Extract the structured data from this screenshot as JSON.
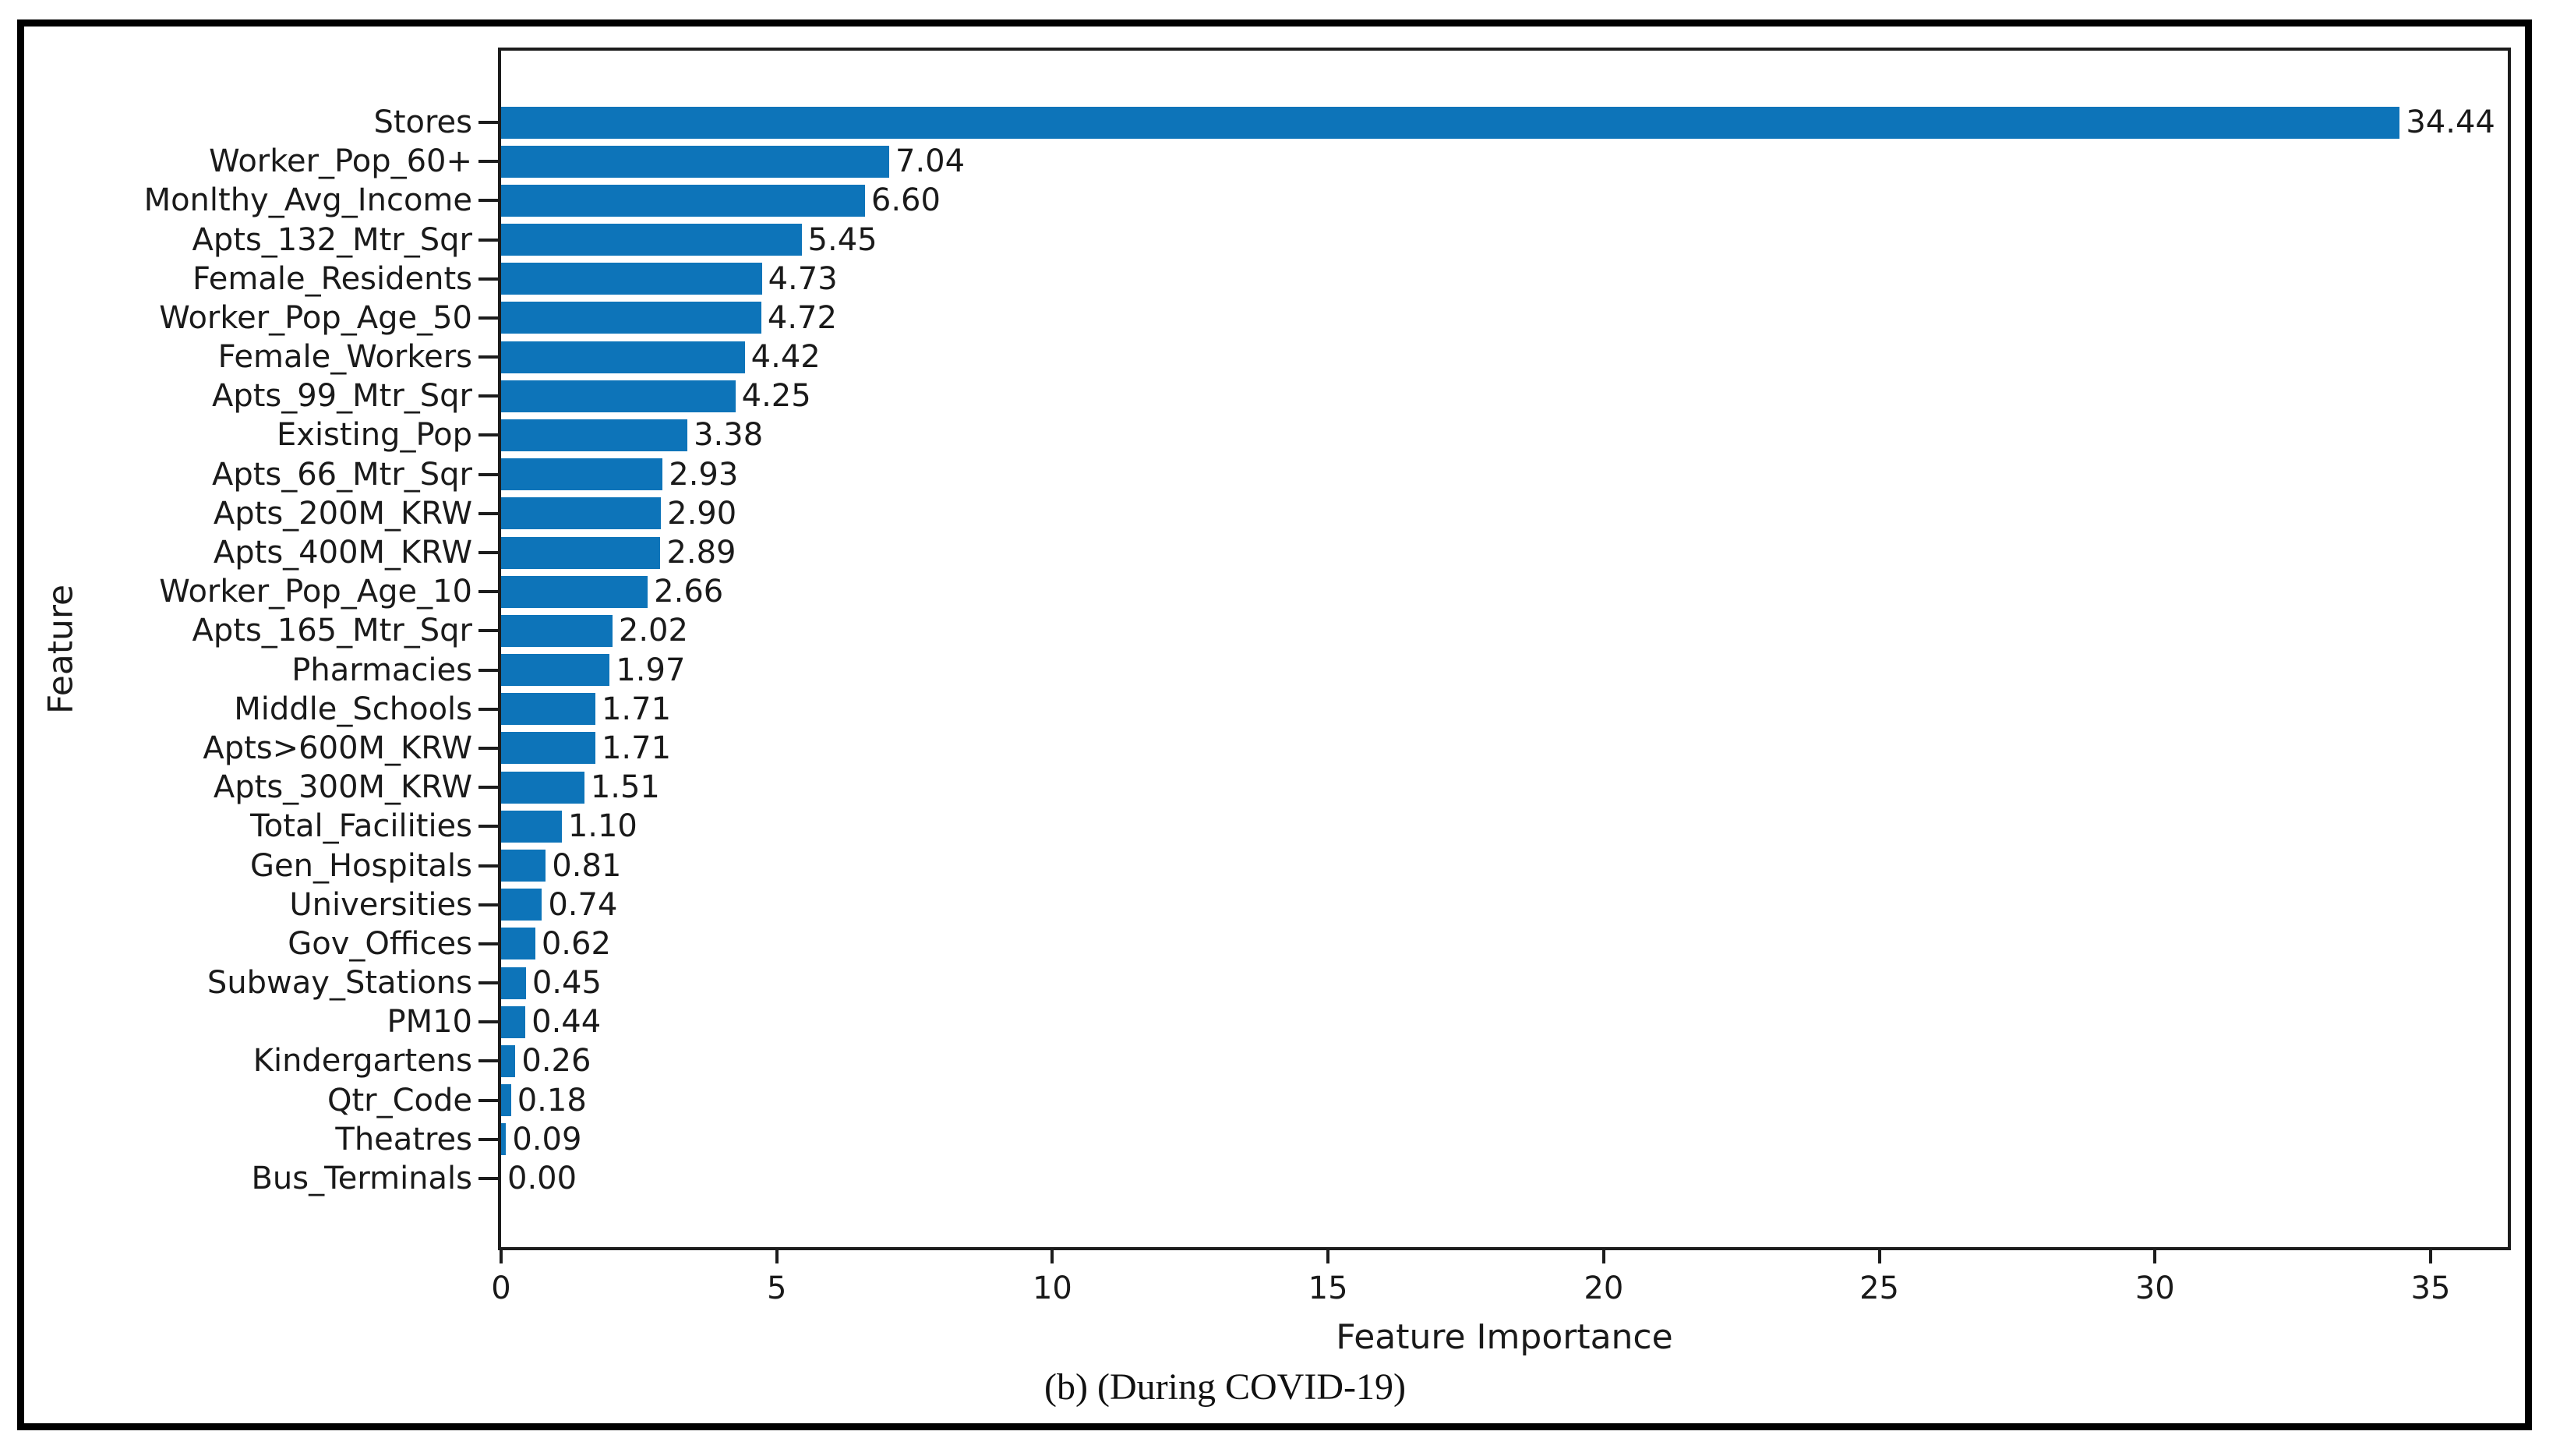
{
  "chart_data": {
    "type": "bar",
    "orientation": "horizontal",
    "xlabel": "Feature Importance",
    "ylabel": "Feature",
    "caption": "(b) (During COVID-19)",
    "categories": [
      "Stores",
      "Worker_Pop_60+",
      "Monlthy_Avg_Income",
      "Apts_132_Mtr_Sqr",
      "Female_Residents",
      "Worker_Pop_Age_50",
      "Female_Workers",
      "Apts_99_Mtr_Sqr",
      "Existing_Pop",
      "Apts_66_Mtr_Sqr",
      "Apts_200M_KRW",
      "Apts_400M_KRW",
      "Worker_Pop_Age_10",
      "Apts_165_Mtr_Sqr",
      "Pharmacies",
      "Middle_Schools",
      "Apts>600M_KRW",
      "Apts_300M_KRW",
      "Total_Facilities",
      "Gen_Hospitals",
      "Universities",
      "Gov_Offices",
      "Subway_Stations",
      "PM10",
      "Kindergartens",
      "Qtr_Code",
      "Theatres",
      "Bus_Terminals"
    ],
    "values": [
      34.44,
      7.04,
      6.6,
      5.45,
      4.73,
      4.72,
      4.42,
      4.25,
      3.38,
      2.93,
      2.9,
      2.89,
      2.66,
      2.02,
      1.97,
      1.71,
      1.71,
      1.51,
      1.1,
      0.81,
      0.74,
      0.62,
      0.45,
      0.44,
      0.26,
      0.18,
      0.09,
      0.0
    ],
    "value_label_decimals": 2,
    "xlim": [
      0,
      36.4
    ],
    "xticks": [
      0,
      5,
      10,
      15,
      20,
      25,
      30,
      35
    ],
    "grid": false,
    "legend": null,
    "bar_color": "#0d74b9",
    "text_color": "#1a1a1a",
    "frame_color": "#1c1c1c"
  }
}
